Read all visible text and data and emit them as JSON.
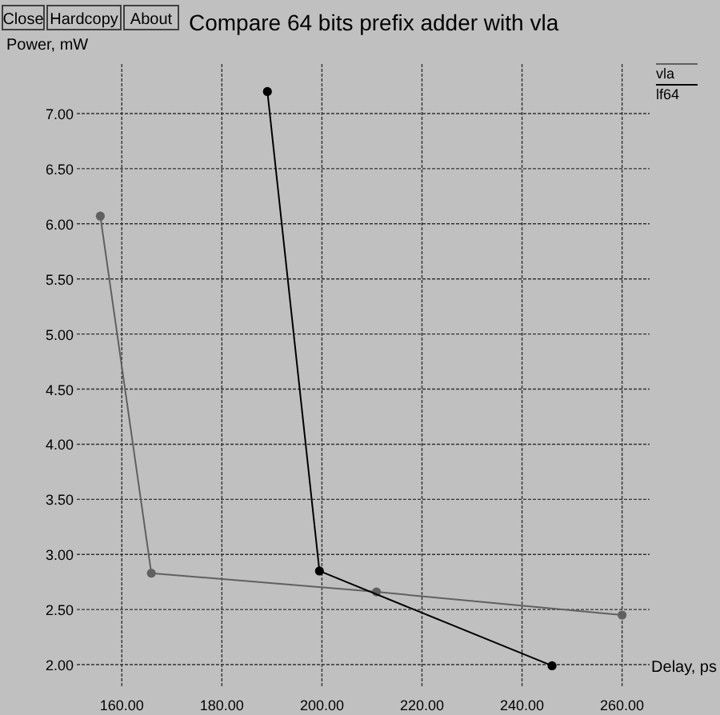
{
  "chart_data": {
    "type": "line",
    "title": "Compare 64 bits prefix adder with vla",
    "xlabel": "Delay, ps",
    "ylabel": "Power, mW",
    "annotations": [
      "Close",
      "Hardcopy",
      "About"
    ],
    "series": [
      {
        "name": "vla",
        "color": "#606060",
        "x": [
          155.7,
          165.9,
          210.9,
          260
        ],
        "values": [
          6.07,
          2.83,
          2.66,
          2.45
        ]
      },
      {
        "name": "lf64",
        "color": "#000000",
        "x": [
          189.1,
          199.5,
          246
        ],
        "values": [
          7.2,
          2.85,
          1.99
        ]
      }
    ],
    "xlim": [
      151,
      265.5
    ],
    "ylim": [
      1.79,
      7.45
    ],
    "xticks": [
      {
        "value": 160,
        "label": "160.00"
      },
      {
        "value": 180,
        "label": "180.00"
      },
      {
        "value": 200,
        "label": "200.00"
      },
      {
        "value": 220,
        "label": "220.00"
      },
      {
        "value": 240,
        "label": "240.00"
      },
      {
        "value": 260,
        "label": "260.00"
      }
    ],
    "yticks": [
      {
        "value": 2,
        "label": "2.00"
      },
      {
        "value": 2.5,
        "label": "2.50"
      },
      {
        "value": 3,
        "label": "3.00"
      },
      {
        "value": 3.5,
        "label": "3.50"
      },
      {
        "value": 4,
        "label": "4.00"
      },
      {
        "value": 4.5,
        "label": "4.50"
      },
      {
        "value": 5,
        "label": "5.00"
      },
      {
        "value": 5.5,
        "label": "5.50"
      },
      {
        "value": 6,
        "label": "6.00"
      },
      {
        "value": 6.5,
        "label": "6.50"
      },
      {
        "value": 7,
        "label": "7.00"
      }
    ],
    "grid": true,
    "legend": "top right",
    "marker": "circle",
    "line_style": "solid"
  }
}
